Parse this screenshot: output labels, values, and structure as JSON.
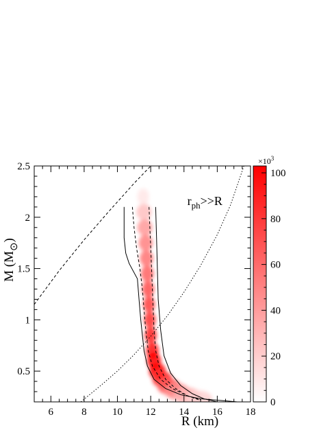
{
  "chart_data": {
    "type": "heatmap",
    "xlabel": "R (km)",
    "ylabel": "M (M",
    "ylabel_sun_symbol": "⊙",
    "ylabel_close": ")",
    "xlim": [
      5,
      18
    ],
    "ylim": [
      0.2,
      2.5
    ],
    "xticks": [
      6,
      8,
      10,
      12,
      14,
      16,
      18
    ],
    "yticks": [
      0.5,
      1,
      1.5,
      2,
      2.5
    ],
    "colorbar": {
      "multiplier": "×10",
      "multiplier_exp": "3",
      "ticks": [
        0,
        20,
        40,
        60,
        80,
        100
      ],
      "range": [
        0,
        103
      ],
      "color_low": "#ffffff",
      "color_high": "#ff0000"
    },
    "annotation": {
      "prefix": "r",
      "subscript": "ph",
      "suffix": ">>R",
      "x": 14.2,
      "y": 2.12
    },
    "density_ridge": [
      {
        "m": 2.2,
        "r": 11.55,
        "w": 0.35,
        "intensity": 0.1
      },
      {
        "m": 2.05,
        "r": 11.6,
        "w": 0.45,
        "intensity": 0.25
      },
      {
        "m": 1.9,
        "r": 11.65,
        "w": 0.45,
        "intensity": 0.4
      },
      {
        "m": 1.75,
        "r": 11.7,
        "w": 0.42,
        "intensity": 0.5
      },
      {
        "m": 1.6,
        "r": 11.75,
        "w": 0.4,
        "intensity": 0.55
      },
      {
        "m": 1.45,
        "r": 11.8,
        "w": 0.38,
        "intensity": 0.62
      },
      {
        "m": 1.3,
        "r": 11.85,
        "w": 0.36,
        "intensity": 0.7
      },
      {
        "m": 1.15,
        "r": 11.9,
        "w": 0.35,
        "intensity": 0.76
      },
      {
        "m": 1.0,
        "r": 11.95,
        "w": 0.35,
        "intensity": 0.82
      },
      {
        "m": 0.85,
        "r": 12.0,
        "w": 0.36,
        "intensity": 0.88
      },
      {
        "m": 0.7,
        "r": 12.1,
        "w": 0.38,
        "intensity": 0.94
      },
      {
        "m": 0.6,
        "r": 12.2,
        "w": 0.42,
        "intensity": 0.98
      },
      {
        "m": 0.5,
        "r": 12.4,
        "w": 0.5,
        "intensity": 1.0
      },
      {
        "m": 0.42,
        "r": 12.7,
        "w": 0.6,
        "intensity": 0.85
      },
      {
        "m": 0.35,
        "r": 13.1,
        "w": 0.7,
        "intensity": 0.65
      },
      {
        "m": 0.3,
        "r": 13.6,
        "w": 0.75,
        "intensity": 0.45
      },
      {
        "m": 0.26,
        "r": 14.2,
        "w": 0.8,
        "intensity": 0.3
      },
      {
        "m": 0.23,
        "r": 14.9,
        "w": 0.8,
        "intensity": 0.18
      }
    ],
    "contours": [
      {
        "name": "outer-contour",
        "style": "solid",
        "x": [
          10.4,
          10.4,
          10.5,
          10.7,
          11.2,
          11.3,
          11.4,
          11.5,
          11.6,
          11.8,
          12.2,
          12.9,
          13.8,
          15.0,
          16.5,
          17.2
        ],
        "y": [
          2.1,
          1.8,
          1.65,
          1.55,
          1.4,
          1.2,
          1.0,
          0.85,
          0.7,
          0.55,
          0.42,
          0.33,
          0.27,
          0.23,
          0.21,
          0.2
        ]
      },
      {
        "name": "outer-contour",
        "style": "solid",
        "x": [
          12.3,
          12.35,
          12.4,
          12.45,
          12.6,
          12.8,
          13.2,
          13.8,
          14.5,
          15.2,
          16.0
        ],
        "y": [
          2.1,
          1.8,
          1.5,
          1.2,
          0.9,
          0.65,
          0.48,
          0.36,
          0.28,
          0.23,
          0.2
        ]
      },
      {
        "name": "inner-contour",
        "style": "dashed",
        "x": [
          10.9,
          11.0,
          11.15,
          11.35,
          11.5,
          11.6,
          11.7,
          11.85,
          12.1,
          12.6,
          13.3,
          14.2,
          15.0
        ],
        "y": [
          2.1,
          1.9,
          1.7,
          1.5,
          1.3,
          1.1,
          0.9,
          0.7,
          0.55,
          0.42,
          0.33,
          0.26,
          0.22
        ]
      },
      {
        "name": "inner-contour",
        "style": "dashed",
        "x": [
          11.9,
          11.95,
          12.0,
          12.05,
          12.1,
          12.15,
          12.2,
          12.3,
          12.5,
          12.9,
          13.5,
          14.2,
          14.9
        ],
        "y": [
          2.1,
          1.9,
          1.7,
          1.5,
          1.3,
          1.1,
          0.9,
          0.7,
          0.55,
          0.42,
          0.33,
          0.26,
          0.22
        ]
      }
    ],
    "limit_lines": [
      {
        "name": "left-dashed-limit",
        "style": "dashed",
        "x": [
          5.0,
          6.5,
          8.0,
          9.5,
          11.0,
          12.0
        ],
        "y": [
          1.15,
          1.48,
          1.78,
          2.06,
          2.33,
          2.5
        ]
      },
      {
        "name": "right-dotted-limit",
        "style": "dotted",
        "x": [
          7.8,
          9.0,
          10.0,
          11.0,
          12.0,
          13.0,
          14.0,
          15.0,
          16.0,
          16.8,
          17.6
        ],
        "y": [
          0.2,
          0.36,
          0.5,
          0.66,
          0.84,
          1.04,
          1.27,
          1.53,
          1.83,
          2.12,
          2.5
        ]
      }
    ]
  }
}
